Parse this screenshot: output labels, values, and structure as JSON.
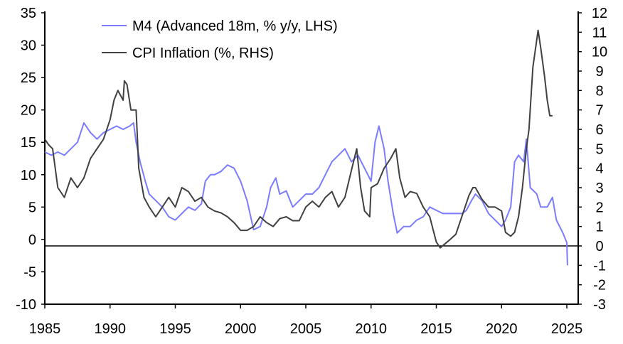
{
  "chart_data": {
    "type": "line",
    "title": "",
    "xlabel": "",
    "ylabel_left": "",
    "ylabel_right": "",
    "xlim": [
      1985,
      2025
    ],
    "x_ticks": [
      "1985",
      "1990",
      "1995",
      "2000",
      "2005",
      "2010",
      "2015",
      "2020",
      "2025"
    ],
    "ylim_left": [
      -10,
      35
    ],
    "y_ticks_left": [
      "-10",
      "-5",
      "0",
      "5",
      "10",
      "15",
      "20",
      "25",
      "30",
      "35"
    ],
    "ylim_right": [
      -3,
      12
    ],
    "y_ticks_right": [
      "-3",
      "-2",
      "-1",
      "0",
      "1",
      "2",
      "3",
      "4",
      "5",
      "6",
      "7",
      "8",
      "9",
      "10",
      "11",
      "12"
    ],
    "grid": false,
    "legend_position": "top-left",
    "zero_line_axis": "right",
    "series": [
      {
        "name": "M4 (Advanced 18m, % y/y, LHS)",
        "axis": "left",
        "color": "#7b7bff",
        "points": [
          [
            1985,
            13.5
          ],
          [
            1985.5,
            13
          ],
          [
            1986,
            13.5
          ],
          [
            1986.5,
            13
          ],
          [
            1987,
            14
          ],
          [
            1987.5,
            15
          ],
          [
            1988,
            18
          ],
          [
            1988.5,
            16.5
          ],
          [
            1989,
            15.5
          ],
          [
            1989.5,
            16.5
          ],
          [
            1990,
            17
          ],
          [
            1990.5,
            17.5
          ],
          [
            1991,
            17
          ],
          [
            1991.5,
            17.5
          ],
          [
            1991.8,
            18
          ],
          [
            1992,
            15
          ],
          [
            1992.3,
            12
          ],
          [
            1992.7,
            9
          ],
          [
            1993,
            7
          ],
          [
            1993.5,
            6
          ],
          [
            1994,
            5
          ],
          [
            1994.5,
            3.5
          ],
          [
            1995,
            3
          ],
          [
            1995.5,
            4
          ],
          [
            1996,
            5
          ],
          [
            1996.5,
            4.5
          ],
          [
            1997,
            5.5
          ],
          [
            1997.3,
            9
          ],
          [
            1997.7,
            10
          ],
          [
            1998,
            10
          ],
          [
            1998.5,
            10.5
          ],
          [
            1999,
            11.5
          ],
          [
            1999.5,
            11
          ],
          [
            2000,
            9
          ],
          [
            2000.5,
            6
          ],
          [
            2001,
            1.5
          ],
          [
            2001.5,
            2
          ],
          [
            2002,
            5
          ],
          [
            2002.3,
            8
          ],
          [
            2002.7,
            9.5
          ],
          [
            2003,
            7
          ],
          [
            2003.5,
            7.5
          ],
          [
            2004,
            5
          ],
          [
            2004.5,
            6
          ],
          [
            2005,
            7
          ],
          [
            2005.5,
            7
          ],
          [
            2006,
            8
          ],
          [
            2006.5,
            10
          ],
          [
            2007,
            12
          ],
          [
            2007.5,
            13
          ],
          [
            2008,
            14
          ],
          [
            2008.5,
            12
          ],
          [
            2009,
            13
          ],
          [
            2009.5,
            11
          ],
          [
            2010,
            9
          ],
          [
            2010.3,
            15
          ],
          [
            2010.6,
            17.5
          ],
          [
            2011,
            14
          ],
          [
            2011.3,
            9
          ],
          [
            2011.7,
            4
          ],
          [
            2012,
            1
          ],
          [
            2012.5,
            2
          ],
          [
            2013,
            2
          ],
          [
            2013.5,
            3
          ],
          [
            2014,
            3.5
          ],
          [
            2014.5,
            5
          ],
          [
            2015,
            4.5
          ],
          [
            2015.5,
            4
          ],
          [
            2016,
            4
          ],
          [
            2016.5,
            4
          ],
          [
            2017,
            4
          ],
          [
            2017.3,
            4.5
          ],
          [
            2017.7,
            6
          ],
          [
            2018,
            7
          ],
          [
            2018.5,
            6
          ],
          [
            2019,
            4
          ],
          [
            2019.5,
            3
          ],
          [
            2020,
            2
          ],
          [
            2020.3,
            3
          ],
          [
            2020.7,
            5
          ],
          [
            2021,
            12
          ],
          [
            2021.3,
            13
          ],
          [
            2021.7,
            12
          ],
          [
            2021.9,
            15.5
          ],
          [
            2022.2,
            8
          ],
          [
            2022.7,
            7
          ],
          [
            2023,
            5
          ],
          [
            2023.5,
            5
          ],
          [
            2023.9,
            6.5
          ],
          [
            2024.2,
            3
          ],
          [
            2024.7,
            1
          ],
          [
            2025,
            -0.5
          ],
          [
            2025.05,
            -4
          ]
        ]
      },
      {
        "name": "CPI Inflation (%, RHS)",
        "axis": "right",
        "color": "#404040",
        "points": [
          [
            1985,
            5.5
          ],
          [
            1985.3,
            5.2
          ],
          [
            1985.6,
            5
          ],
          [
            1986,
            3
          ],
          [
            1986.5,
            2.5
          ],
          [
            1987,
            3.5
          ],
          [
            1987.5,
            3
          ],
          [
            1988,
            3.5
          ],
          [
            1988.5,
            4.5
          ],
          [
            1989,
            5
          ],
          [
            1989.5,
            5.5
          ],
          [
            1990,
            6.5
          ],
          [
            1990.3,
            7.5
          ],
          [
            1990.6,
            8
          ],
          [
            1991,
            7.5
          ],
          [
            1991.1,
            8.5
          ],
          [
            1991.3,
            8.3
          ],
          [
            1991.6,
            7
          ],
          [
            1992,
            7
          ],
          [
            1992.2,
            4
          ],
          [
            1992.6,
            2.5
          ],
          [
            1993,
            2
          ],
          [
            1993.5,
            1.5
          ],
          [
            1994,
            2
          ],
          [
            1994.5,
            2.5
          ],
          [
            1995,
            2
          ],
          [
            1995.5,
            3
          ],
          [
            1996,
            2.8
          ],
          [
            1996.5,
            2.3
          ],
          [
            1997,
            2.5
          ],
          [
            1997.5,
            2
          ],
          [
            1998,
            1.8
          ],
          [
            1998.5,
            1.7
          ],
          [
            1999,
            1.5
          ],
          [
            1999.5,
            1.2
          ],
          [
            2000,
            0.8
          ],
          [
            2000.5,
            0.8
          ],
          [
            2001,
            1
          ],
          [
            2001.5,
            1.5
          ],
          [
            2002,
            1.2
          ],
          [
            2002.5,
            1
          ],
          [
            2003,
            1.4
          ],
          [
            2003.5,
            1.5
          ],
          [
            2004,
            1.3
          ],
          [
            2004.5,
            1.3
          ],
          [
            2005,
            2
          ],
          [
            2005.5,
            2.3
          ],
          [
            2006,
            2
          ],
          [
            2006.5,
            2.5
          ],
          [
            2007,
            2.8
          ],
          [
            2007.5,
            2
          ],
          [
            2008,
            2.5
          ],
          [
            2008.5,
            3.9
          ],
          [
            2008.9,
            5
          ],
          [
            2009.2,
            3
          ],
          [
            2009.5,
            1.8
          ],
          [
            2009.9,
            1.5
          ],
          [
            2010,
            3
          ],
          [
            2010.5,
            3.2
          ],
          [
            2011,
            4
          ],
          [
            2011.5,
            4.5
          ],
          [
            2011.9,
            5
          ],
          [
            2012.2,
            3.5
          ],
          [
            2012.6,
            2.5
          ],
          [
            2013,
            2.8
          ],
          [
            2013.5,
            2.7
          ],
          [
            2014,
            2
          ],
          [
            2014.5,
            1.5
          ],
          [
            2015,
            0.2
          ],
          [
            2015.3,
            -0.1
          ],
          [
            2016,
            0.3
          ],
          [
            2016.5,
            0.6
          ],
          [
            2017,
            1.6
          ],
          [
            2017.5,
            2.6
          ],
          [
            2017.8,
            3
          ],
          [
            2018,
            3
          ],
          [
            2018.5,
            2.4
          ],
          [
            2019,
            2
          ],
          [
            2019.5,
            2
          ],
          [
            2020,
            1.8
          ],
          [
            2020.3,
            0.7
          ],
          [
            2020.7,
            0.5
          ],
          [
            2021,
            0.7
          ],
          [
            2021.3,
            1.5
          ],
          [
            2021.6,
            3
          ],
          [
            2021.9,
            5
          ],
          [
            2022.1,
            6
          ],
          [
            2022.4,
            9.2
          ],
          [
            2022.8,
            11.1
          ],
          [
            2023,
            10.2
          ],
          [
            2023.3,
            8.7
          ],
          [
            2023.5,
            7.5
          ],
          [
            2023.7,
            6.7
          ],
          [
            2023.9,
            6.7
          ]
        ]
      }
    ]
  }
}
